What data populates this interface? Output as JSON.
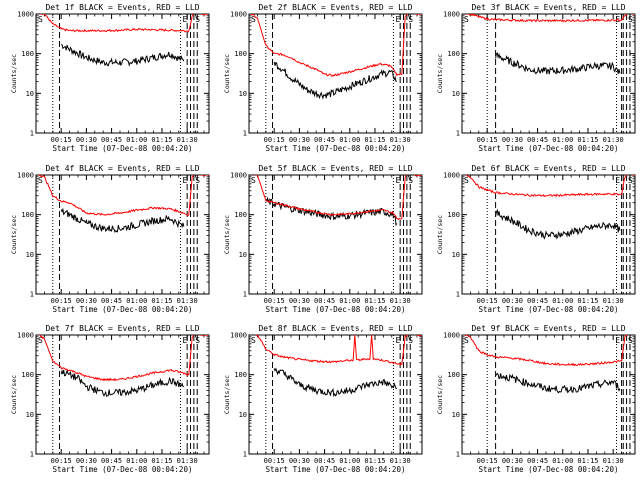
{
  "figure": {
    "x_label": "Start Time (07-Dec-08 00:04:20)",
    "y_label": "Counts/sec",
    "x_ticks": [
      "00:15",
      "00:30",
      "00:45",
      "01:00",
      "01:15",
      "01:30"
    ],
    "y_ticks": [
      "1",
      "10",
      "100",
      "1000"
    ],
    "markers": [
      "S",
      "E",
      "S"
    ],
    "colors": {
      "events": "#000000",
      "lld": "#ff0000",
      "axes": "#000000"
    }
  },
  "chart_data": [
    {
      "type": "line",
      "title": "Det 1f BLACK = Events, RED = LLD",
      "ylog": true,
      "ylim": [
        1,
        1000
      ],
      "xunit": "minutes",
      "xlim": [
        0,
        103
      ],
      "vlines_dotted": [
        10,
        86
      ],
      "vlines_dashed": [
        14,
        90
      ],
      "vlines_boundary": [
        92,
        94,
        96
      ],
      "series": [
        {
          "name": "Events",
          "color": "#000000",
          "x": [
            15,
            20,
            30,
            40,
            50,
            60,
            70,
            80,
            88
          ],
          "y": [
            170,
            130,
            80,
            60,
            60,
            65,
            80,
            100,
            65
          ]
        },
        {
          "name": "LLD",
          "color": "#ff0000",
          "x": [
            0,
            5,
            10,
            15,
            20,
            30,
            40,
            50,
            60,
            70,
            80,
            88,
            91,
            93,
            95,
            100,
            103
          ],
          "y": [
            1100,
            1000,
            560,
            420,
            380,
            380,
            380,
            390,
            410,
            400,
            390,
            380,
            370,
            900,
            1100,
            1000,
            1000
          ]
        }
      ]
    },
    {
      "type": "line",
      "title": "Det 2f BLACK = Events, RED = LLD",
      "ylog": true,
      "ylim": [
        1,
        1000
      ],
      "xunit": "minutes",
      "xlim": [
        0,
        103
      ],
      "vlines_dotted": [
        10,
        86
      ],
      "vlines_dashed": [
        14,
        90
      ],
      "vlines_boundary": [
        92,
        94,
        96
      ],
      "series": [
        {
          "name": "Events",
          "color": "#000000",
          "x": [
            15,
            20,
            25,
            30,
            35,
            40,
            45,
            50,
            60,
            70,
            78,
            84,
            86,
            88
          ],
          "y": [
            60,
            40,
            25,
            17,
            12,
            10,
            9,
            10,
            15,
            22,
            30,
            34,
            28,
            20
          ]
        },
        {
          "name": "LLD",
          "color": "#ff0000",
          "x": [
            0,
            5,
            10,
            15,
            20,
            25,
            30,
            40,
            45,
            50,
            60,
            70,
            78,
            84,
            88,
            90,
            91,
            93,
            95,
            100,
            103
          ],
          "y": [
            1100,
            800,
            160,
            100,
            95,
            80,
            60,
            40,
            30,
            28,
            35,
            45,
            55,
            50,
            30,
            30,
            30,
            900,
            1100,
            1000,
            1000
          ]
        }
      ]
    },
    {
      "type": "line",
      "title": "Det 3f BLACK = Events, RED = LLD",
      "ylog": true,
      "ylim": [
        1,
        1000
      ],
      "xunit": "minutes",
      "xlim": [
        0,
        103
      ],
      "vlines_dotted": [
        15,
        92
      ],
      "vlines_dashed": [
        20,
        95
      ],
      "vlines_boundary": [
        96,
        98,
        100
      ],
      "series": [
        {
          "name": "Events",
          "color": "#000000",
          "x": [
            20,
            25,
            30,
            35,
            40,
            50,
            60,
            70,
            80,
            90,
            94
          ],
          "y": [
            90,
            75,
            60,
            50,
            40,
            36,
            38,
            42,
            50,
            48,
            32
          ]
        },
        {
          "name": "LLD",
          "color": "#ff0000",
          "x": [
            0,
            5,
            10,
            15,
            20,
            30,
            40,
            50,
            60,
            70,
            80,
            90,
            95,
            97,
            99,
            103
          ],
          "y": [
            1100,
            1000,
            850,
            750,
            720,
            700,
            680,
            680,
            680,
            690,
            690,
            700,
            700,
            900,
            1100,
            1000
          ]
        }
      ]
    },
    {
      "type": "line",
      "title": "Det 4f BLACK = Events, RED = LLD",
      "ylog": true,
      "ylim": [
        1,
        1000
      ],
      "xunit": "minutes",
      "xlim": [
        0,
        103
      ],
      "vlines_dotted": [
        10,
        86
      ],
      "vlines_dashed": [
        14,
        90
      ],
      "vlines_boundary": [
        92,
        94,
        96
      ],
      "series": [
        {
          "name": "Events",
          "color": "#000000",
          "x": [
            15,
            20,
            30,
            40,
            50,
            60,
            70,
            80,
            88
          ],
          "y": [
            120,
            100,
            60,
            45,
            45,
            55,
            70,
            80,
            50
          ]
        },
        {
          "name": "LLD",
          "color": "#ff0000",
          "x": [
            0,
            5,
            10,
            15,
            20,
            25,
            30,
            40,
            50,
            60,
            70,
            80,
            88,
            90,
            91,
            93,
            95,
            100,
            103
          ],
          "y": [
            1100,
            900,
            300,
            220,
            200,
            150,
            110,
            100,
            110,
            130,
            150,
            140,
            110,
            100,
            100,
            900,
            1100,
            1000,
            1000
          ]
        }
      ]
    },
    {
      "type": "line",
      "title": "Det 5f BLACK = Events, RED = LLD",
      "ylog": true,
      "ylim": [
        1,
        1000
      ],
      "xunit": "minutes",
      "xlim": [
        0,
        103
      ],
      "vlines_dotted": [
        10,
        86
      ],
      "vlines_dashed": [
        14,
        90
      ],
      "vlines_boundary": [
        92,
        94,
        96
      ],
      "series": [
        {
          "name": "Events",
          "color": "#000000",
          "x": [
            10,
            15,
            20,
            30,
            40,
            50,
            60,
            70,
            80,
            86,
            88
          ],
          "y": [
            220,
            190,
            160,
            130,
            105,
            90,
            95,
            110,
            120,
            100,
            60
          ]
        },
        {
          "name": "LLD",
          "color": "#ff0000",
          "x": [
            0,
            5,
            10,
            15,
            20,
            30,
            40,
            50,
            60,
            70,
            80,
            86,
            88,
            90,
            91,
            93,
            95,
            100,
            103
          ],
          "y": [
            1100,
            1000,
            230,
            200,
            180,
            140,
            115,
            100,
            105,
            120,
            130,
            110,
            80,
            80,
            80,
            900,
            1100,
            1000,
            1000
          ]
        }
      ]
    },
    {
      "type": "line",
      "title": "Det 6f BLACK = Events, RED = LLD",
      "ylog": true,
      "ylim": [
        1,
        1000
      ],
      "xunit": "minutes",
      "xlim": [
        0,
        103
      ],
      "vlines_dotted": [
        15,
        92
      ],
      "vlines_dashed": [
        20,
        95
      ],
      "vlines_boundary": [
        96,
        98,
        100
      ],
      "series": [
        {
          "name": "Events",
          "color": "#000000",
          "x": [
            20,
            25,
            30,
            40,
            50,
            60,
            70,
            80,
            90,
            94
          ],
          "y": [
            110,
            90,
            70,
            40,
            30,
            32,
            40,
            50,
            55,
            40
          ]
        },
        {
          "name": "LLD",
          "color": "#ff0000",
          "x": [
            0,
            5,
            10,
            15,
            20,
            30,
            40,
            50,
            60,
            70,
            80,
            90,
            95,
            97,
            99,
            103
          ],
          "y": [
            1100,
            900,
            500,
            420,
            360,
            330,
            310,
            300,
            310,
            320,
            330,
            330,
            320,
            900,
            1100,
            1000
          ]
        }
      ]
    },
    {
      "type": "line",
      "title": "Det 7f BLACK = Events, RED = LLD",
      "ylog": true,
      "ylim": [
        1,
        1000
      ],
      "xunit": "minutes",
      "xlim": [
        0,
        103
      ],
      "vlines_dotted": [
        10,
        86
      ],
      "vlines_dashed": [
        14,
        90
      ],
      "vlines_boundary": [
        92,
        94,
        96
      ],
      "series": [
        {
          "name": "Events",
          "color": "#000000",
          "x": [
            15,
            20,
            25,
            30,
            40,
            50,
            60,
            70,
            80,
            88
          ],
          "y": [
            120,
            100,
            80,
            50,
            35,
            35,
            40,
            55,
            70,
            50
          ]
        },
        {
          "name": "LLD",
          "color": "#ff0000",
          "x": [
            0,
            5,
            10,
            15,
            20,
            25,
            30,
            40,
            50,
            60,
            70,
            80,
            88,
            90,
            91,
            93,
            95,
            100,
            103
          ],
          "y": [
            1100,
            800,
            220,
            150,
            130,
            110,
            90,
            75,
            75,
            90,
            110,
            130,
            110,
            100,
            100,
            900,
            1100,
            1000,
            1000
          ]
        }
      ]
    },
    {
      "type": "line",
      "title": "Det 8f BLACK = Events, RED = LLD",
      "ylog": true,
      "ylim": [
        1,
        1000
      ],
      "xunit": "minutes",
      "xlim": [
        0,
        103
      ],
      "vlines_dotted": [
        10,
        86
      ],
      "vlines_dashed": [
        14,
        90
      ],
      "vlines_boundary": [
        92,
        94,
        96
      ],
      "series": [
        {
          "name": "Events",
          "color": "#000000",
          "x": [
            15,
            20,
            25,
            30,
            40,
            50,
            60,
            70,
            75,
            80,
            88
          ],
          "y": [
            140,
            110,
            80,
            55,
            40,
            35,
            40,
            55,
            60,
            65,
            45
          ]
        },
        {
          "name": "LLD",
          "color": "#ff0000",
          "x": [
            0,
            5,
            10,
            15,
            20,
            30,
            40,
            50,
            60,
            62,
            63,
            64,
            70,
            72,
            73,
            74,
            80,
            88,
            90,
            91,
            93,
            95,
            100,
            103
          ],
          "y": [
            1100,
            1000,
            450,
            320,
            280,
            240,
            220,
            210,
            230,
            230,
            1000,
            230,
            250,
            250,
            1000,
            250,
            230,
            190,
            180,
            180,
            900,
            1100,
            1000,
            1000
          ]
        }
      ]
    },
    {
      "type": "line",
      "title": "Det 9f BLACK = Events, RED = LLD",
      "ylog": true,
      "ylim": [
        1,
        1000
      ],
      "xunit": "minutes",
      "xlim": [
        0,
        103
      ],
      "vlines_dotted": [
        15,
        92
      ],
      "vlines_dashed": [
        20,
        95
      ],
      "vlines_boundary": [
        96,
        98,
        100
      ],
      "series": [
        {
          "name": "Events",
          "color": "#000000",
          "x": [
            20,
            25,
            30,
            40,
            50,
            60,
            70,
            80,
            90,
            94
          ],
          "y": [
            100,
            90,
            80,
            60,
            45,
            42,
            45,
            55,
            65,
            45
          ]
        },
        {
          "name": "LLD",
          "color": "#ff0000",
          "x": [
            0,
            5,
            10,
            15,
            20,
            30,
            40,
            50,
            60,
            70,
            80,
            90,
            95,
            97,
            99,
            103
          ],
          "y": [
            1100,
            900,
            400,
            320,
            280,
            260,
            230,
            190,
            180,
            180,
            190,
            210,
            220,
            900,
            1100,
            1000
          ]
        }
      ]
    }
  ]
}
